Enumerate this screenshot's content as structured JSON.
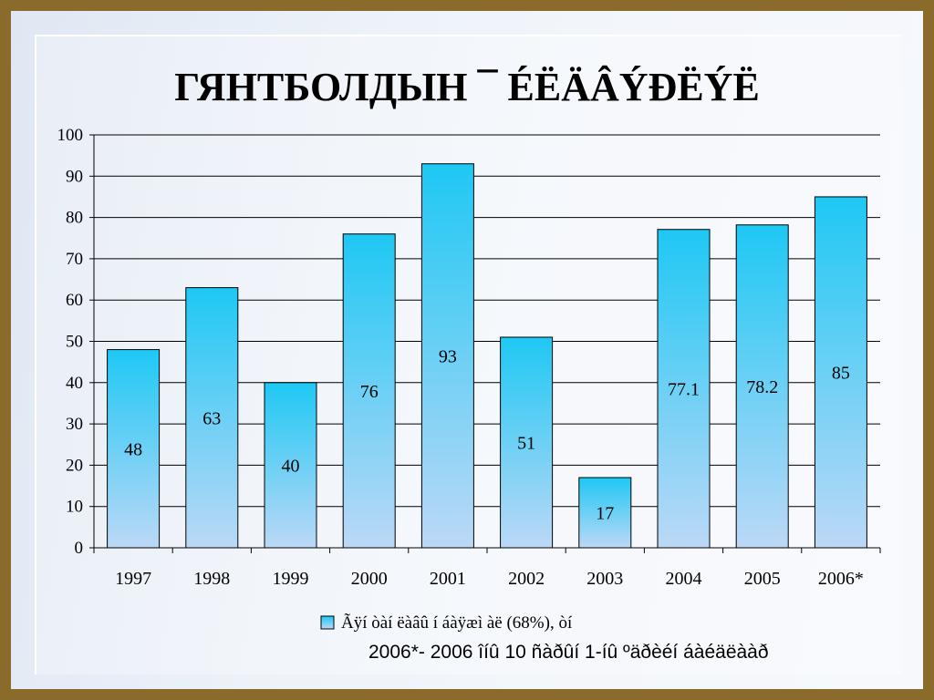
{
  "slide": {
    "title": "ГЯНТБОЛДЫН ¯ ÉËÄÂÝÐËÝË",
    "footnote": "2006*- 2006 îíû 10 ñàðûí 1-íû ºäðèéí áàéäëààð"
  },
  "colors": {
    "frame": "#8a6b2c",
    "bar_top": "#1ec8f4",
    "bar_bottom": "#bcd8f6",
    "bar_stroke": "#000000",
    "grid": "#000000"
  },
  "chart_data": {
    "type": "bar",
    "categories": [
      "1997",
      "1998",
      "1999",
      "2000",
      "2001",
      "2002",
      "2003",
      "2004",
      "2005",
      "2006*"
    ],
    "series": [
      {
        "name": "Ãÿí òàí ëàâû í  áàÿæì àë (68%), òí",
        "values": [
          48,
          63,
          40,
          76,
          93,
          51,
          17,
          77.1,
          78.2,
          85
        ],
        "labels": [
          "48",
          "63",
          "40",
          "76",
          "93",
          "51",
          "17",
          "77.1",
          "78.2",
          "85"
        ]
      }
    ],
    "y_ticks": [
      "0",
      "10",
      "20",
      "30",
      "40",
      "50",
      "60",
      "70",
      "80",
      "90",
      "100"
    ],
    "ylim": [
      0,
      100
    ],
    "grid": true,
    "legend_position": "bottom",
    "xlabel": "",
    "ylabel": ""
  }
}
